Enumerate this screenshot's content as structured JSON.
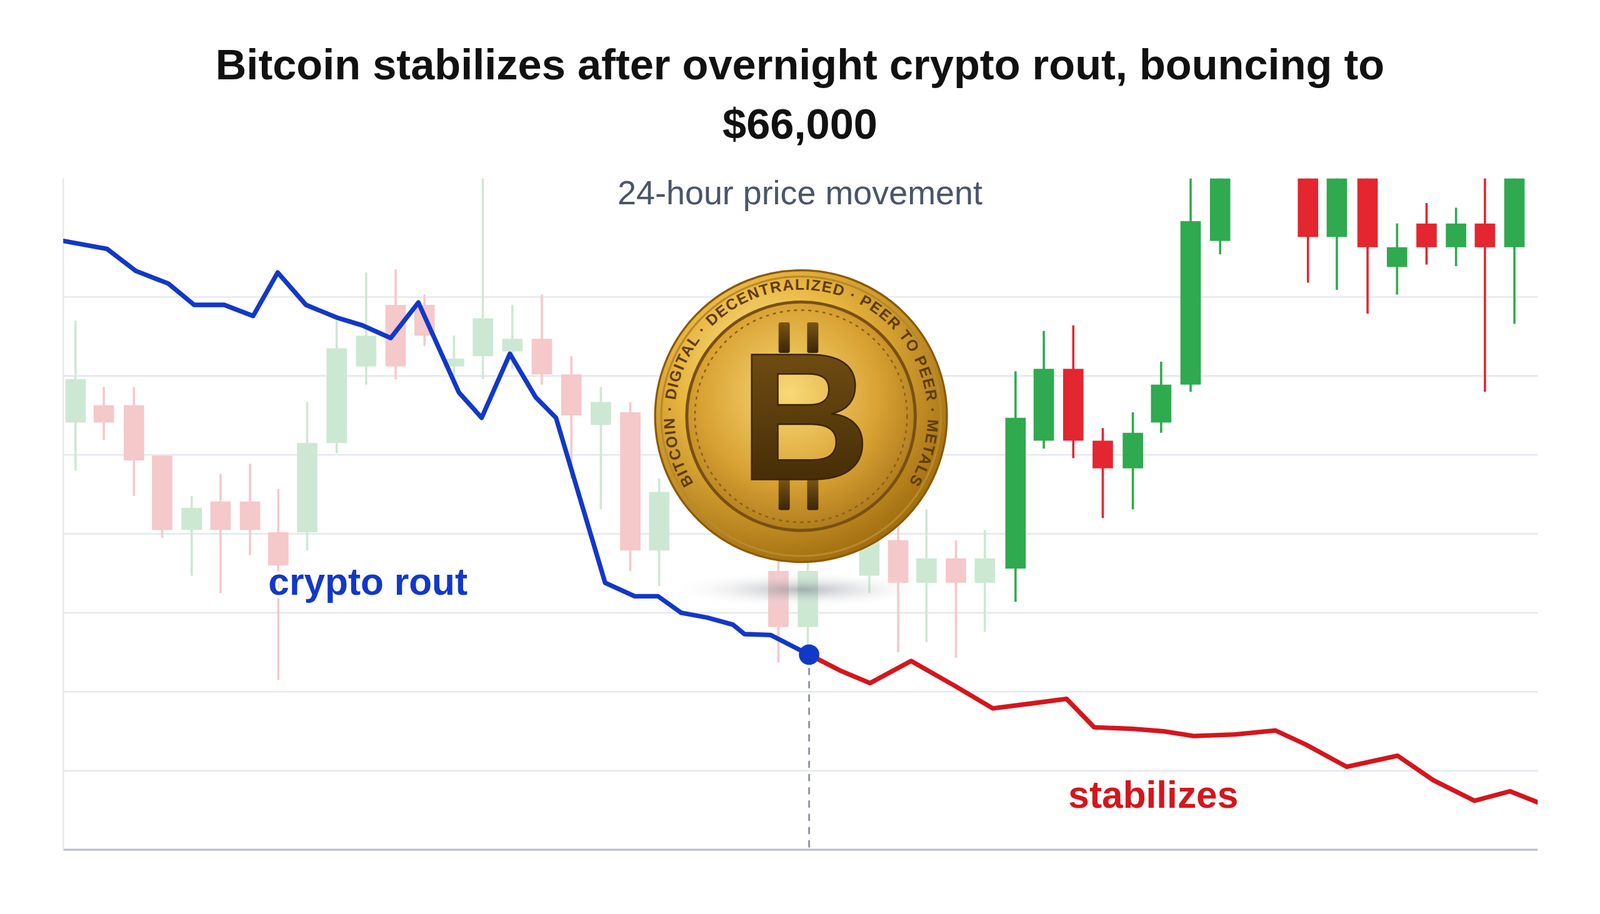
{
  "chart_data": {
    "type": "line",
    "title": "Bitcoin stabilizes after overnight crypto rout, bouncing to $66,000",
    "subtitle": "24-hour price movement",
    "xlim": [
      0,
      24
    ],
    "ylim": [
      0,
      8.5
    ],
    "yticks": [
      0,
      1,
      2,
      3,
      4,
      5,
      6,
      7
    ],
    "grid": true,
    "tick_labels": false,
    "series": [
      {
        "name": "crypto rout",
        "color": "#1238c8",
        "marker": "end",
        "x": [
          0,
          0.71,
          1.18,
          1.71,
          2.13,
          2.62,
          3.09,
          3.49,
          3.95,
          4.45,
          4.87,
          5.33,
          5.78,
          6.44,
          6.81,
          7.27,
          7.69,
          8.02,
          8.82,
          9.3,
          9.68,
          10.06,
          10.48,
          10.9,
          11.09,
          11.51,
          12.14
        ],
        "values": [
          7.71,
          7.61,
          7.33,
          7.17,
          6.9,
          6.9,
          6.76,
          7.31,
          6.9,
          6.74,
          6.64,
          6.48,
          6.93,
          5.79,
          5.47,
          6.28,
          5.73,
          5.47,
          3.38,
          3.21,
          3.21,
          3.0,
          2.94,
          2.85,
          2.73,
          2.72,
          2.47
        ]
      },
      {
        "name": "stabilizes",
        "color": "#d4161c",
        "x": [
          12.14,
          12.67,
          13.13,
          13.8,
          14.5,
          15.13,
          15.74,
          16.33,
          16.78,
          17.41,
          17.9,
          18.4,
          19.07,
          19.73,
          20.23,
          20.89,
          21.72,
          22.3,
          22.97,
          23.55,
          24.0
        ],
        "values": [
          2.47,
          2.26,
          2.11,
          2.39,
          2.08,
          1.79,
          1.85,
          1.91,
          1.55,
          1.53,
          1.5,
          1.44,
          1.46,
          1.51,
          1.33,
          1.05,
          1.19,
          0.88,
          0.62,
          0.74,
          0.6
        ]
      },
      {
        "type": "candlestick",
        "x": [
          0.2,
          0.66,
          1.15,
          1.61,
          2.09,
          2.56,
          3.04,
          3.5,
          3.97,
          4.45,
          4.93,
          5.41,
          5.88,
          6.36,
          6.83,
          7.31,
          7.79,
          8.27,
          8.75,
          9.23,
          9.7,
          11.64,
          12.12,
          13.12,
          13.59,
          14.05,
          14.53,
          15.0,
          15.5,
          15.96,
          16.44,
          16.92,
          17.41,
          17.87,
          18.35,
          18.83,
          20.26,
          20.73,
          21.23,
          21.71,
          22.19,
          22.67,
          23.14,
          23.62
        ],
        "open": [
          5.41,
          5.63,
          5.63,
          4.99,
          4.05,
          4.41,
          4.41,
          4.02,
          4.02,
          5.15,
          6.12,
          6.9,
          6.9,
          6.12,
          6.25,
          6.31,
          6.47,
          6.02,
          5.38,
          5.54,
          3.79,
          3.53,
          2.82,
          3.47,
          3.92,
          3.38,
          3.69,
          3.38,
          3.56,
          5.18,
          6.09,
          5.18,
          4.83,
          5.41,
          5.89,
          7.71,
          8.7,
          7.76,
          8.7,
          7.38,
          7.93,
          7.63,
          7.93,
          7.63
        ],
        "high": [
          6.7,
          5.86,
          5.86,
          4.99,
          4.48,
          4.76,
          4.89,
          4.57,
          5.67,
          6.77,
          7.31,
          7.35,
          7.03,
          6.51,
          8.51,
          6.9,
          7.03,
          6.25,
          5.86,
          5.67,
          4.7,
          3.79,
          3.73,
          4.05,
          4.24,
          4.31,
          3.92,
          4.05,
          6.06,
          6.57,
          6.64,
          5.34,
          5.54,
          6.18,
          8.9,
          8.9,
          8.9,
          8.9,
          8.9,
          7.93,
          8.19,
          8.13,
          8.6,
          8.9
        ],
        "low": [
          4.8,
          5.19,
          4.48,
          3.95,
          3.47,
          3.25,
          3.73,
          2.15,
          3.79,
          5.02,
          5.89,
          5.96,
          6.38,
          5.93,
          5.96,
          6.09,
          5.89,
          4.7,
          4.31,
          3.53,
          3.34,
          2.37,
          2.5,
          3.25,
          2.5,
          2.63,
          2.43,
          2.76,
          3.14,
          5.08,
          4.96,
          4.2,
          4.31,
          5.28,
          5.8,
          7.54,
          7.18,
          7.09,
          6.79,
          7.03,
          7.41,
          7.39,
          5.8,
          6.66
        ],
        "close": [
          5.96,
          5.41,
          4.93,
          4.05,
          4.33,
          4.05,
          4.05,
          3.6,
          5.15,
          6.35,
          6.51,
          6.12,
          6.51,
          6.22,
          6.73,
          6.47,
          6.02,
          5.5,
          5.67,
          3.79,
          4.53,
          2.82,
          3.53,
          3.92,
          3.38,
          3.69,
          3.38,
          3.69,
          5.47,
          6.09,
          5.18,
          4.83,
          5.28,
          5.89,
          7.96,
          8.7,
          7.76,
          8.7,
          7.63,
          7.63,
          7.63,
          7.93,
          7.63,
          8.7
        ],
        "colors": [
          "#cde8d2",
          "#f5c8ca",
          "#f5c8ca",
          "#f5c8ca",
          "#cde8d2",
          "#f5c8ca",
          "#f5c8ca",
          "#f5c8ca",
          "#cde8d2",
          "#cde8d2",
          "#cde8d2",
          "#f5c8ca",
          "#f5c8ca",
          "#cde8d2",
          "#cde8d2",
          "#cde8d2",
          "#f5c8ca",
          "#f5c8ca",
          "#cde8d2",
          "#f5c8ca",
          "#cde8d2",
          "#f5c8ca",
          "#cde8d2",
          "#cde8d2",
          "#f5c8ca",
          "#cde8d2",
          "#f5c8ca",
          "#cde8d2",
          "#2faa4f",
          "#2faa4f",
          "#e32630",
          "#e32630",
          "#2faa4f",
          "#2faa4f",
          "#2faa4f",
          "#2faa4f",
          "#e32630",
          "#2faa4f",
          "#e32630",
          "#2faa4f",
          "#e32630",
          "#2faa4f",
          "#e32630",
          "#2faa4f"
        ]
      }
    ],
    "coin": {
      "symbol": "B",
      "ring_text": "BITCOIN · DIGITAL · DECENTRALIZED · PEER TO PEER · METALS"
    }
  }
}
